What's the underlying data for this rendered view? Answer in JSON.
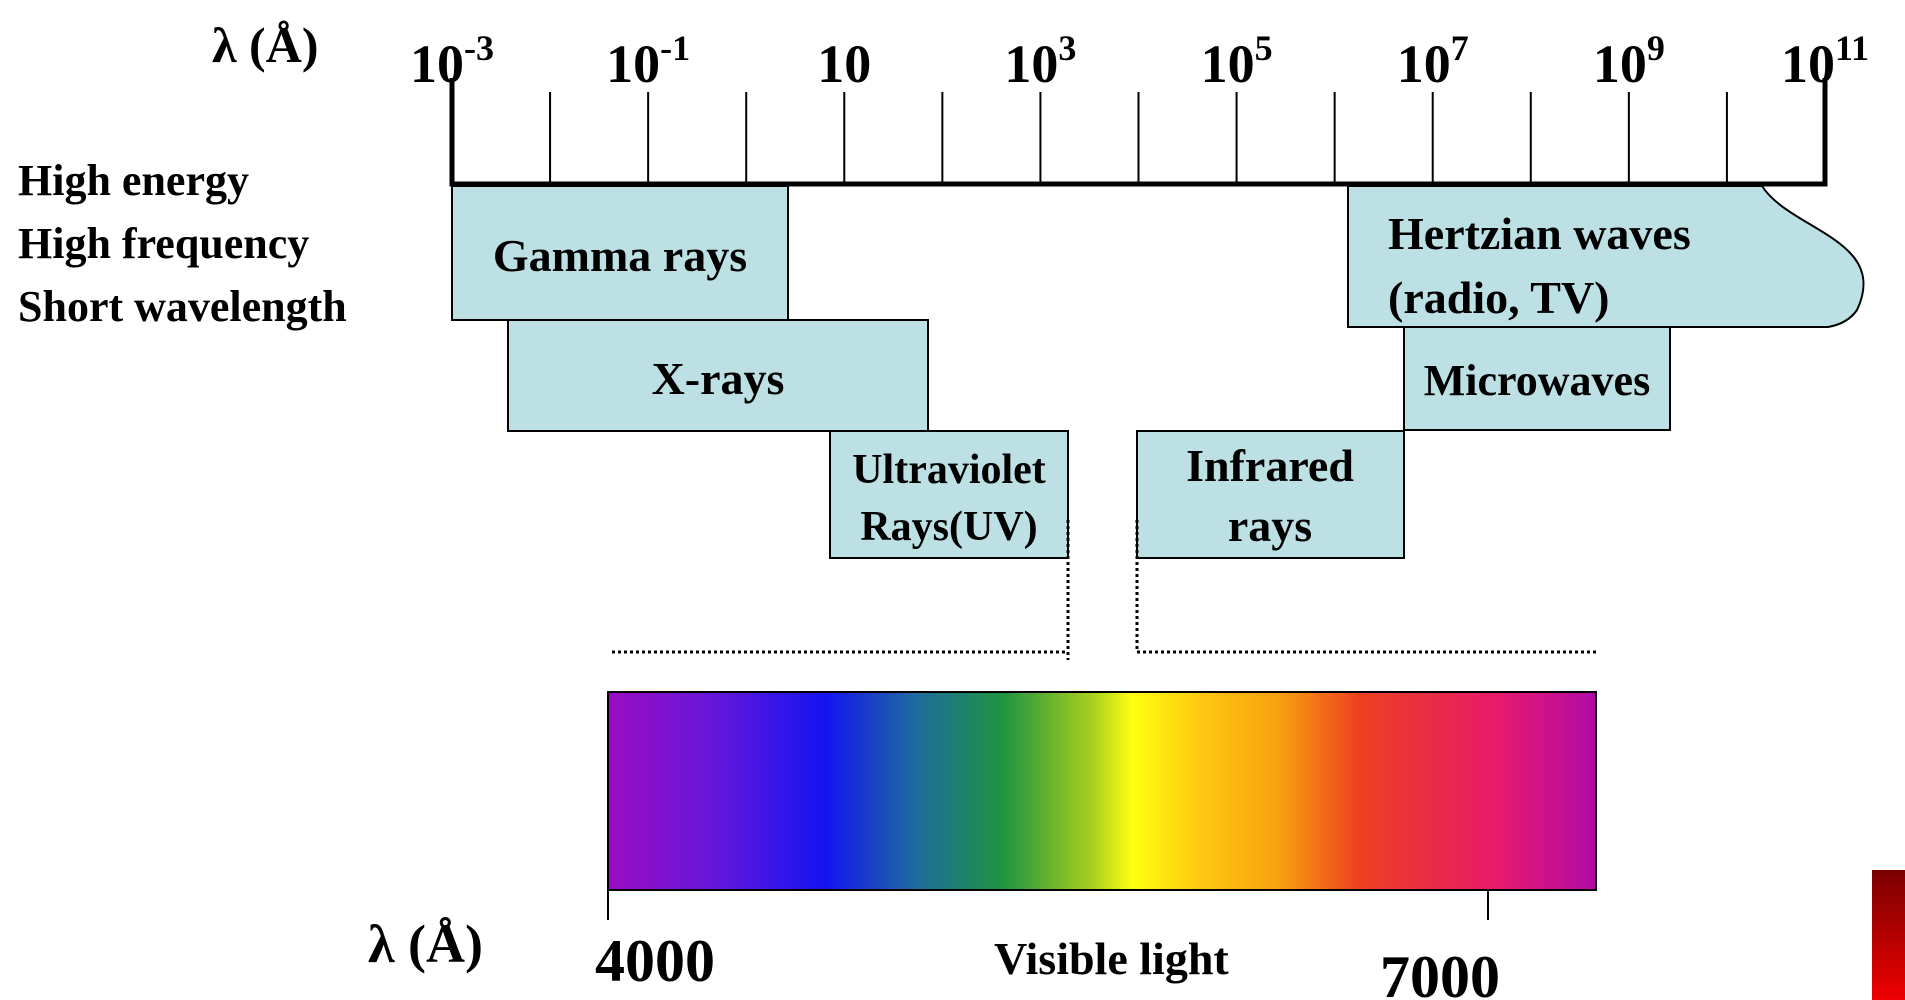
{
  "scale": {
    "symbol": "λ (Å)",
    "ticks": [
      {
        "base": "10",
        "exp": "-3"
      },
      {
        "base": "10",
        "exp": "-1"
      },
      {
        "base": "10",
        "exp": ""
      },
      {
        "base": "10",
        "exp": "3"
      },
      {
        "base": "10",
        "exp": "5"
      },
      {
        "base": "10",
        "exp": "7"
      },
      {
        "base": "10",
        "exp": "9"
      },
      {
        "base": "10",
        "exp": "11"
      }
    ]
  },
  "side_labels": [
    "High energy",
    "High frequency",
    "Short wavelength"
  ],
  "bands": {
    "gamma": [
      "Gamma rays"
    ],
    "xray": [
      "X-rays"
    ],
    "uv": [
      "Ultraviolet",
      "Rays(UV)"
    ],
    "infrared": [
      "Infrared",
      "rays"
    ],
    "microwave": [
      "Microwaves"
    ],
    "hertzian": [
      "Hertzian waves",
      "(radio, TV)"
    ]
  },
  "visible": {
    "symbol": "λ (Å)",
    "label": "Visible light",
    "min_label": "4000",
    "max_label": "7000"
  },
  "colors": {
    "band_fill": "#bde0e4",
    "corner_accent": "#8b0000"
  }
}
